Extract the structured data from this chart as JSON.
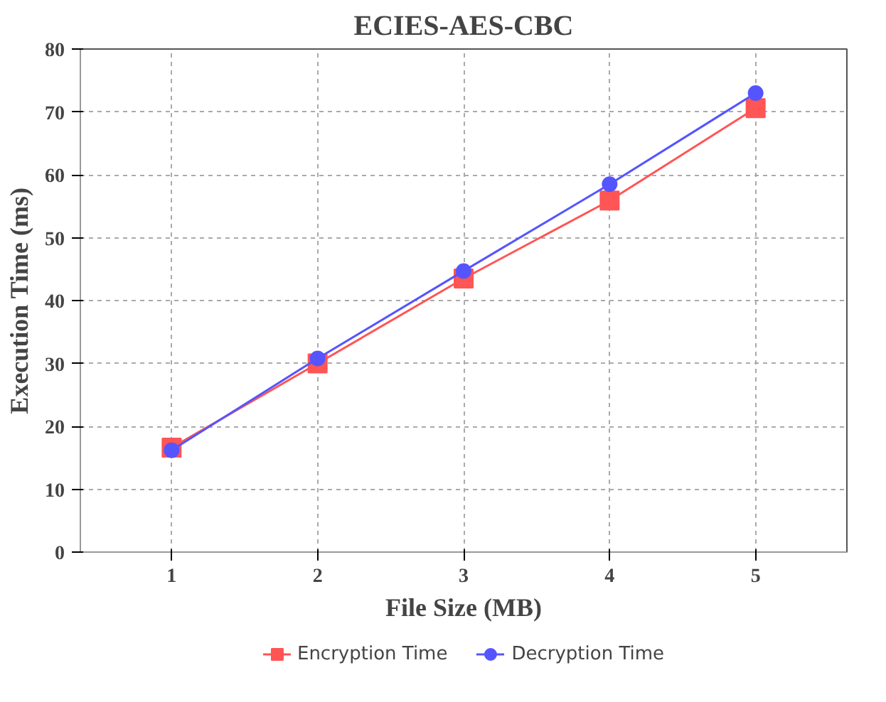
{
  "chart_data": {
    "type": "line",
    "title": "ECIES-AES-CBC",
    "xlabel": "File Size (MB)",
    "ylabel": "Execution Time (ms)",
    "x": [
      1,
      2,
      3,
      4,
      5
    ],
    "series": [
      {
        "name": "Encryption Time",
        "color": "#ff5555",
        "marker": "square",
        "values": [
          16.6,
          30.0,
          43.5,
          55.9,
          70.6
        ]
      },
      {
        "name": "Decryption Time",
        "color": "#5555ff",
        "marker": "circle",
        "values": [
          16.2,
          30.8,
          44.7,
          58.5,
          73.0
        ]
      }
    ],
    "xlim": [
      0.375,
      5.625
    ],
    "xticks": [
      1,
      2,
      3,
      4,
      5
    ],
    "ylim": [
      0,
      80
    ],
    "yticks": [
      0,
      10,
      20,
      30,
      40,
      50,
      60,
      70,
      80
    ],
    "grid": true,
    "legend": "bottom",
    "line_style": "solid"
  }
}
